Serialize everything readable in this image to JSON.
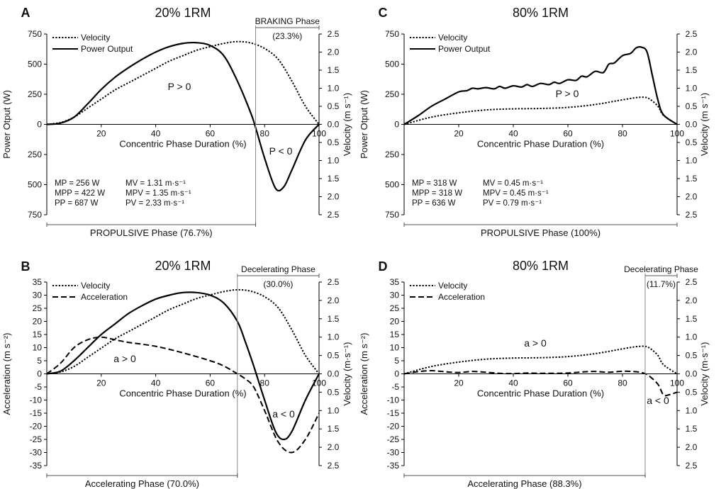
{
  "accent_color": "#e41e26",
  "chart_data": [
    {
      "panel": "A",
      "title": "20% 1RM",
      "type": "line",
      "xlabel": "Concentric Phase Duration (%)",
      "ylabel": "Power Otput (W)",
      "y2label": "Velocity (m s⁻¹)",
      "xlim": [
        0,
        100
      ],
      "ylim": [
        -750,
        750
      ],
      "y2lim": [
        -2.5,
        2.5
      ],
      "x_ticks": [
        "20",
        "40",
        "60",
        "80",
        "100"
      ],
      "y_ticks": [
        "750",
        "500",
        "250",
        "0",
        "250",
        "500",
        "750"
      ],
      "y2_ticks": [
        "2.5",
        "2.0",
        "1.5",
        "1.0",
        "0.5",
        "0.0",
        "0.5",
        "1.0",
        "1.5",
        "2.0",
        "2.5"
      ],
      "legend": [
        "Velocity",
        "Power Output"
      ],
      "legend_position": "top-left",
      "series": [
        {
          "name": "Power Output",
          "style": "solid",
          "axis": "left",
          "x": [
            0,
            5,
            10,
            15,
            20,
            25,
            30,
            35,
            40,
            45,
            50,
            55,
            60,
            65,
            70,
            75,
            77,
            80,
            84,
            87,
            90,
            95,
            100
          ],
          "y": [
            0,
            10,
            60,
            170,
            290,
            390,
            470,
            540,
            600,
            645,
            672,
            678,
            655,
            570,
            360,
            90,
            -50,
            -280,
            -530,
            -520,
            -380,
            -130,
            0
          ]
        },
        {
          "name": "Velocity",
          "style": "dotted",
          "axis": "right",
          "x": [
            0,
            5,
            10,
            15,
            20,
            25,
            30,
            35,
            40,
            45,
            50,
            55,
            60,
            65,
            70,
            75,
            80,
            85,
            90,
            95,
            100
          ],
          "y": [
            0,
            0.05,
            0.2,
            0.45,
            0.7,
            0.95,
            1.15,
            1.35,
            1.55,
            1.75,
            1.9,
            2.05,
            2.15,
            2.24,
            2.29,
            2.25,
            2.1,
            1.8,
            1.2,
            0.5,
            0.0
          ]
        }
      ],
      "phase_boundary_x": 76.7,
      "phase_top_label": "BRAKING Phase",
      "phase_top_pct": "(23.3%)",
      "phase_bottom_label": "PROPULSIVE Phase (76.7%)",
      "annotations": [
        "P > 0",
        "P < 0"
      ],
      "stats": [
        [
          "MP = 256 W",
          "MV = 1.31 m·s⁻¹"
        ],
        [
          "MPP = 422 W",
          "MPV = 1.35 m·s⁻¹"
        ],
        [
          "PP = 687 W",
          "PV = 2.33 m·s⁻¹"
        ]
      ]
    },
    {
      "panel": "B",
      "title": "20% 1RM",
      "type": "line",
      "xlabel": "Concentric Phase Duration (%)",
      "ylabel": "Acceleration (m s⁻²)",
      "y2label": "Velocity (m·s⁻¹)",
      "xlim": [
        0,
        100
      ],
      "ylim": [
        -35,
        35
      ],
      "y2lim": [
        -2.5,
        2.5
      ],
      "x_ticks": [
        "20",
        "40",
        "60",
        "80",
        "100"
      ],
      "y_ticks": [
        "35",
        "30",
        "25",
        "20",
        "15",
        "10",
        "5",
        "0",
        "-5",
        "-10",
        "-15",
        "-20",
        "-25",
        "-30",
        "-35"
      ],
      "y2_ticks": [
        "2.5",
        "2.0",
        "1.5",
        "1.0",
        "0.5",
        "0.0",
        "0.5",
        "1.0",
        "1.5",
        "2.0",
        "2.5"
      ],
      "legend": [
        "Velocity",
        "Acceleration"
      ],
      "legend_position": "top-left",
      "series": [
        {
          "name": "Acceleration",
          "style": "dashed",
          "axis": "left",
          "x": [
            0,
            5,
            10,
            15,
            20,
            25,
            30,
            40,
            50,
            60,
            65,
            70,
            73,
            76,
            80,
            85,
            90,
            95,
            100
          ],
          "y": [
            0,
            4,
            10,
            13,
            14,
            13,
            12,
            10.5,
            8,
            5,
            3,
            0,
            -2,
            -5,
            -14,
            -26,
            -30,
            -25,
            -15
          ]
        },
        {
          "name": "Velocity",
          "style": "dotted",
          "axis": "right",
          "x": [
            0,
            5,
            10,
            15,
            20,
            25,
            30,
            35,
            40,
            45,
            50,
            55,
            60,
            65,
            70,
            75,
            80,
            85,
            90,
            95,
            100
          ],
          "y": [
            0,
            0.05,
            0.2,
            0.45,
            0.7,
            0.95,
            1.15,
            1.35,
            1.55,
            1.75,
            1.9,
            2.05,
            2.15,
            2.24,
            2.29,
            2.25,
            2.1,
            1.8,
            1.2,
            0.5,
            0.0
          ]
        },
        {
          "name": "",
          "style": "solid",
          "axis": "left",
          "x": [
            0,
            5,
            10,
            15,
            20,
            25,
            30,
            35,
            40,
            45,
            50,
            55,
            60,
            65,
            70,
            73,
            76,
            80,
            84,
            87,
            90,
            95,
            100
          ],
          "y": [
            0,
            1,
            5,
            10,
            15,
            19,
            23,
            26,
            28.5,
            30,
            31,
            31,
            30,
            27,
            20,
            12,
            3,
            -10,
            -22,
            -25,
            -22,
            -10,
            0
          ]
        }
      ],
      "phase_boundary_x": 70.0,
      "phase_top_label": "Decelerating Phase",
      "phase_top_pct": "(30.0%)",
      "phase_bottom_label": "Accelerating Phase (70.0%)",
      "annotations": [
        "a > 0",
        "a < 0"
      ]
    },
    {
      "panel": "C",
      "title": "80% 1RM",
      "type": "line",
      "xlabel": "Concentric Phase Duration (%)",
      "ylabel": "Power Otput (W)",
      "y2label": "Velocity (m s⁻¹)",
      "xlim": [
        0,
        100
      ],
      "ylim": [
        -750,
        750
      ],
      "y2lim": [
        -2.5,
        2.5
      ],
      "x_ticks": [
        "20",
        "40",
        "60",
        "80",
        "100"
      ],
      "y_ticks": [
        "750",
        "500",
        "250",
        "0",
        "250",
        "500",
        "750"
      ],
      "y2_ticks": [
        "2.5",
        "2.0",
        "1.5",
        "1.0",
        "0.5",
        "0.0",
        "0.5",
        "1.0",
        "1.5",
        "2.0",
        "2.5"
      ],
      "legend": [
        "Velocity",
        "Power Output"
      ],
      "legend_position": "top-left",
      "series": [
        {
          "name": "Power Output",
          "style": "solid",
          "axis": "left",
          "x": [
            0,
            5,
            10,
            15,
            20,
            23,
            25,
            27,
            30,
            33,
            35,
            37,
            40,
            43,
            45,
            47,
            50,
            53,
            55,
            57,
            60,
            63,
            65,
            67,
            70,
            73,
            75,
            77,
            80,
            83,
            85,
            87,
            89,
            91,
            93,
            95,
            100
          ],
          "y": [
            0,
            70,
            150,
            210,
            270,
            280,
            300,
            295,
            305,
            295,
            315,
            300,
            320,
            310,
            330,
            315,
            340,
            330,
            350,
            340,
            370,
            365,
            400,
            395,
            440,
            430,
            500,
            510,
            570,
            590,
            635,
            640,
            600,
            400,
            200,
            80,
            0
          ]
        },
        {
          "name": "Velocity",
          "style": "dotted",
          "axis": "right",
          "x": [
            0,
            10,
            20,
            30,
            40,
            50,
            60,
            70,
            80,
            85,
            88,
            90,
            93,
            95,
            100
          ],
          "y": [
            0,
            0.2,
            0.32,
            0.4,
            0.43,
            0.44,
            0.47,
            0.55,
            0.68,
            0.74,
            0.75,
            0.7,
            0.5,
            0.25,
            0
          ]
        }
      ],
      "phase_bottom_label": "PROPULSIVE Phase (100%)",
      "annotations": [
        "P > 0"
      ],
      "stats": [
        [
          "MP = 318 W",
          "MV = 0.45 m·s⁻¹"
        ],
        [
          "MPP = 318 W",
          "MPV = 0.45 m·s⁻¹"
        ],
        [
          "PP = 636 W",
          "PV = 0.79 m·s⁻¹"
        ]
      ]
    },
    {
      "panel": "D",
      "title": "80% 1RM",
      "type": "line",
      "xlabel": "Concentric Phase Duration (%)",
      "ylabel": "Acceleration (m s⁻²)",
      "y2label": "Velocity (m·s⁻¹)",
      "xlim": [
        0,
        100
      ],
      "ylim": [
        -35,
        35
      ],
      "y2lim": [
        -2.5,
        2.5
      ],
      "x_ticks": [
        "20",
        "40",
        "60",
        "80",
        "100"
      ],
      "y_ticks": [
        "35",
        "30",
        "25",
        "20",
        "15",
        "10",
        "5",
        "0",
        "-5",
        "-10",
        "-15",
        "-20",
        "-25",
        "-30",
        "-35"
      ],
      "y2_ticks": [
        "2.5",
        "2.0",
        "1.5",
        "1.0",
        "0.5",
        "0.0",
        "0.5",
        "1.0",
        "1.5",
        "2.0",
        "2.5"
      ],
      "legend": [
        "Velocity",
        "Acceleration"
      ],
      "legend_position": "top-left",
      "series": [
        {
          "name": "Velocity",
          "style": "dotted",
          "axis": "right",
          "x": [
            0,
            10,
            20,
            30,
            40,
            50,
            60,
            70,
            80,
            85,
            88,
            90,
            93,
            95,
            100
          ],
          "y": [
            0,
            0.2,
            0.32,
            0.4,
            0.43,
            0.44,
            0.47,
            0.55,
            0.68,
            0.74,
            0.75,
            0.7,
            0.5,
            0.25,
            0
          ]
        },
        {
          "name": "Acceleration",
          "style": "dashed",
          "axis": "left",
          "x": [
            0,
            5,
            10,
            15,
            20,
            25,
            30,
            35,
            40,
            45,
            50,
            55,
            60,
            65,
            70,
            75,
            80,
            85,
            88,
            90,
            93,
            95,
            97,
            100
          ],
          "y": [
            0,
            0.8,
            1.2,
            0.8,
            0.5,
            0.9,
            0.6,
            0.2,
            0.1,
            0.3,
            0.2,
            0.2,
            0.3,
            0.7,
            0.9,
            0.6,
            1.0,
            0.8,
            0.2,
            -1,
            -4,
            -8,
            -8,
            -7
          ]
        }
      ],
      "phase_boundary_x": 88.3,
      "phase_top_label": "Decelerating Phase",
      "phase_top_pct": "(11.7%)",
      "phase_bottom_label": "Accelerating Phase (88.3%)",
      "annotations": [
        "a > 0",
        "a < 0"
      ]
    }
  ]
}
